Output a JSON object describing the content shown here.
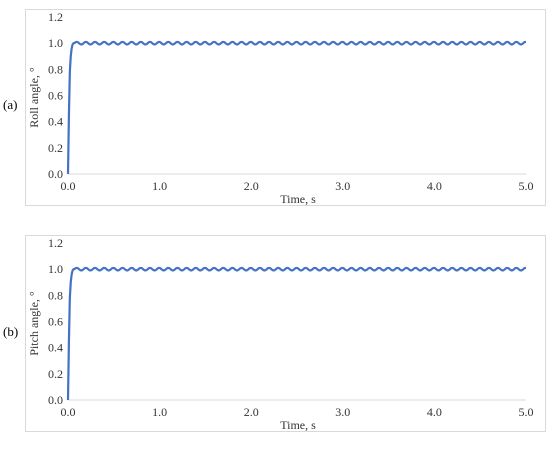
{
  "panels": [
    {
      "label": "(a)"
    },
    {
      "label": "(b)"
    }
  ],
  "chart_data": [
    {
      "type": "line",
      "title": "",
      "xlabel": "Time, s",
      "ylabel": "Roll angle, °",
      "xlim": [
        0,
        5
      ],
      "ylim": [
        0,
        1.2
      ],
      "xticks": [
        "0.0",
        "1.0",
        "2.0",
        "3.0",
        "4.0",
        "5.0"
      ],
      "yticks": [
        "0.0",
        "0.2",
        "0.4",
        "0.6",
        "0.8",
        "1.0",
        "1.2"
      ],
      "grid": false,
      "line_color": "#4472c4",
      "series": [
        {
          "x": [
            0,
            0.01,
            0.02,
            0.03,
            0.04,
            0.05,
            0.06,
            0.08,
            0.1,
            0.15,
            0.2,
            0.3,
            0.5,
            1.0,
            2.0,
            3.0,
            4.0,
            5.0
          ],
          "values": [
            0,
            0.45,
            0.78,
            0.9,
            0.96,
            0.99,
            1.0,
            1.0,
            1.0,
            1.01,
            1.0,
            1.0,
            1.0,
            1.0,
            1.0,
            1.0,
            1.0,
            0.99
          ],
          "oscillation": {
            "amplitude": 0.01,
            "period": 0.1
          }
        }
      ]
    },
    {
      "type": "line",
      "title": "",
      "xlabel": "Time, s",
      "ylabel": "Pitch angle, °",
      "xlim": [
        0,
        5
      ],
      "ylim": [
        0,
        1.2
      ],
      "xticks": [
        "0.0",
        "1.0",
        "2.0",
        "3.0",
        "4.0",
        "5.0"
      ],
      "yticks": [
        "0.0",
        "0.2",
        "0.4",
        "0.6",
        "0.8",
        "1.0",
        "1.2"
      ],
      "grid": false,
      "line_color": "#4472c4",
      "series": [
        {
          "x": [
            0,
            0.01,
            0.02,
            0.03,
            0.04,
            0.05,
            0.06,
            0.08,
            0.1,
            0.15,
            0.2,
            0.3,
            0.5,
            1.0,
            2.0,
            3.0,
            4.0,
            5.0
          ],
          "values": [
            0,
            0.45,
            0.78,
            0.9,
            0.96,
            0.99,
            1.0,
            1.0,
            1.0,
            1.01,
            1.0,
            1.0,
            1.0,
            1.0,
            1.0,
            1.0,
            1.0,
            0.99
          ],
          "oscillation": {
            "amplitude": 0.01,
            "period": 0.1
          }
        }
      ]
    }
  ]
}
